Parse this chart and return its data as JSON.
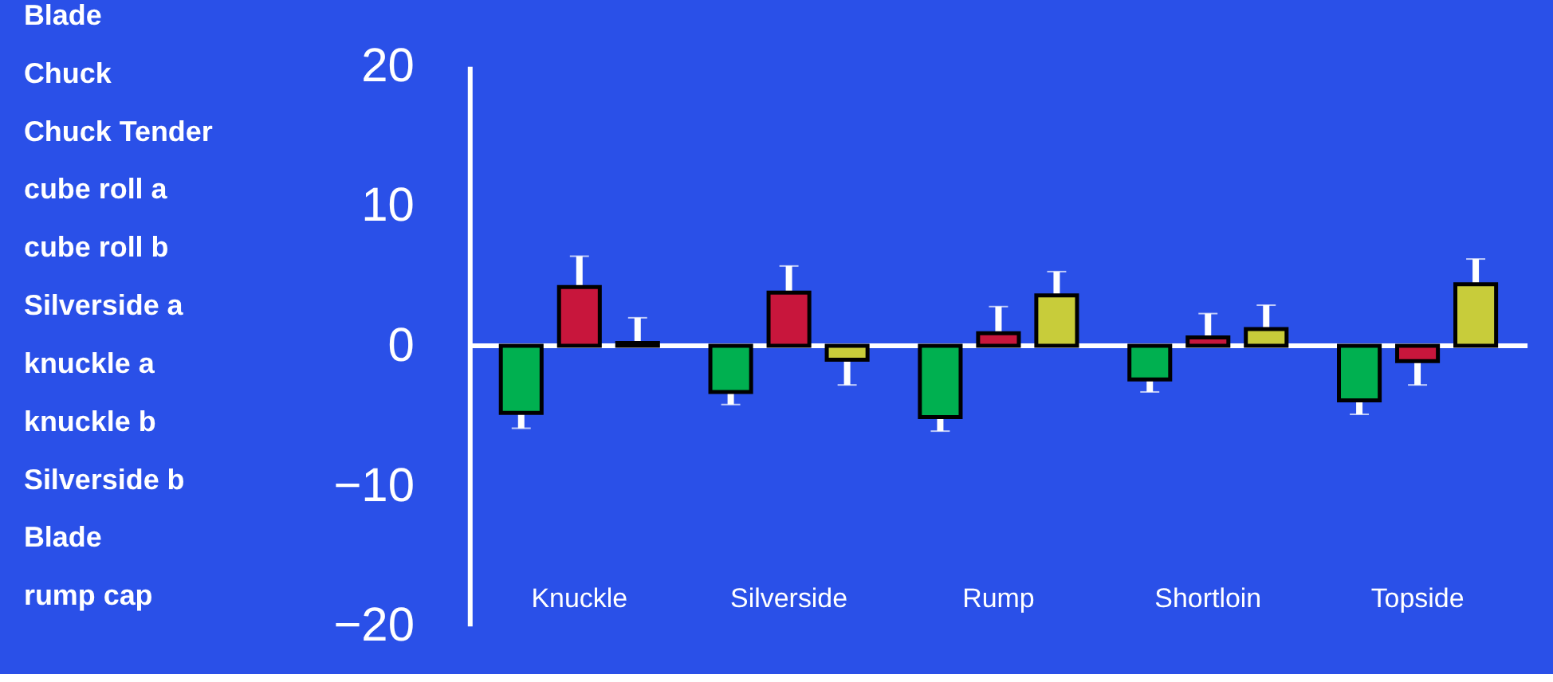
{
  "chart_data": {
    "type": "bar",
    "categories": [
      "Knuckle",
      "Silverside",
      "Rump",
      "Shortloin",
      "Topside"
    ],
    "series": [
      {
        "color": "#00b050",
        "values": [
          -4.8,
          -3.3,
          -5.1,
          -2.4,
          -3.9
        ],
        "errors": [
          [
            -5.9,
            -4.8
          ],
          [
            -4.2,
            -3.3
          ],
          [
            -6.1,
            -5.1
          ],
          [
            -3.3,
            -2.4
          ],
          [
            -4.9,
            -3.9
          ]
        ]
      },
      {
        "color": "#c8163c",
        "values": [
          4.2,
          3.8,
          0.9,
          0.6,
          -1.1
        ],
        "errors": [
          [
            4.2,
            6.4
          ],
          [
            3.8,
            5.7
          ],
          [
            0.9,
            2.8
          ],
          [
            0.6,
            2.3
          ],
          [
            -2.8,
            -1.1
          ]
        ]
      },
      {
        "color": "#c8cc3a",
        "values": [
          0.2,
          -1.0,
          3.6,
          1.2,
          4.4
        ],
        "errors": [
          [
            0.2,
            2.0
          ],
          [
            -2.8,
            -1.0
          ],
          [
            3.6,
            5.3
          ],
          [
            1.2,
            2.9
          ],
          [
            4.4,
            6.2
          ]
        ]
      }
    ],
    "ylim": [
      -20,
      20
    ],
    "yticks": [
      -20,
      -10,
      0,
      10,
      20
    ],
    "grid": false,
    "ref_lines": [
      {
        "axis": "y",
        "value": 0,
        "color": "#ffffff"
      }
    ],
    "annotations": [
      "Blade",
      "Chuck",
      "Chuck Tender",
      "cube roll a",
      "cube roll b",
      "Silverside a",
      "knuckle a",
      "knuckle b",
      "Silverside b",
      "Blade",
      "rump cap"
    ]
  }
}
